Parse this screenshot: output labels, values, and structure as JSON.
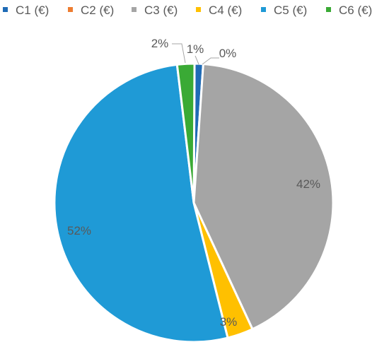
{
  "chart_data": {
    "type": "pie",
    "title": "",
    "legend_position": "top",
    "series": [
      {
        "name": "C1 (€)",
        "value": 1,
        "label": "1%",
        "color": "#1f6bb6"
      },
      {
        "name": "C2 (€)",
        "value": 0,
        "label": "0%",
        "color": "#ed7d31"
      },
      {
        "name": "C3 (€)",
        "value": 42,
        "label": "42%",
        "color": "#a5a5a5"
      },
      {
        "name": "C4 (€)",
        "value": 3,
        "label": "3%",
        "color": "#ffc000"
      },
      {
        "name": "C5 (€)",
        "value": 52,
        "label": "52%",
        "color": "#1f9ad6"
      },
      {
        "name": "C6 (€)",
        "value": 2,
        "label": "2%",
        "color": "#3aaa35"
      }
    ]
  }
}
